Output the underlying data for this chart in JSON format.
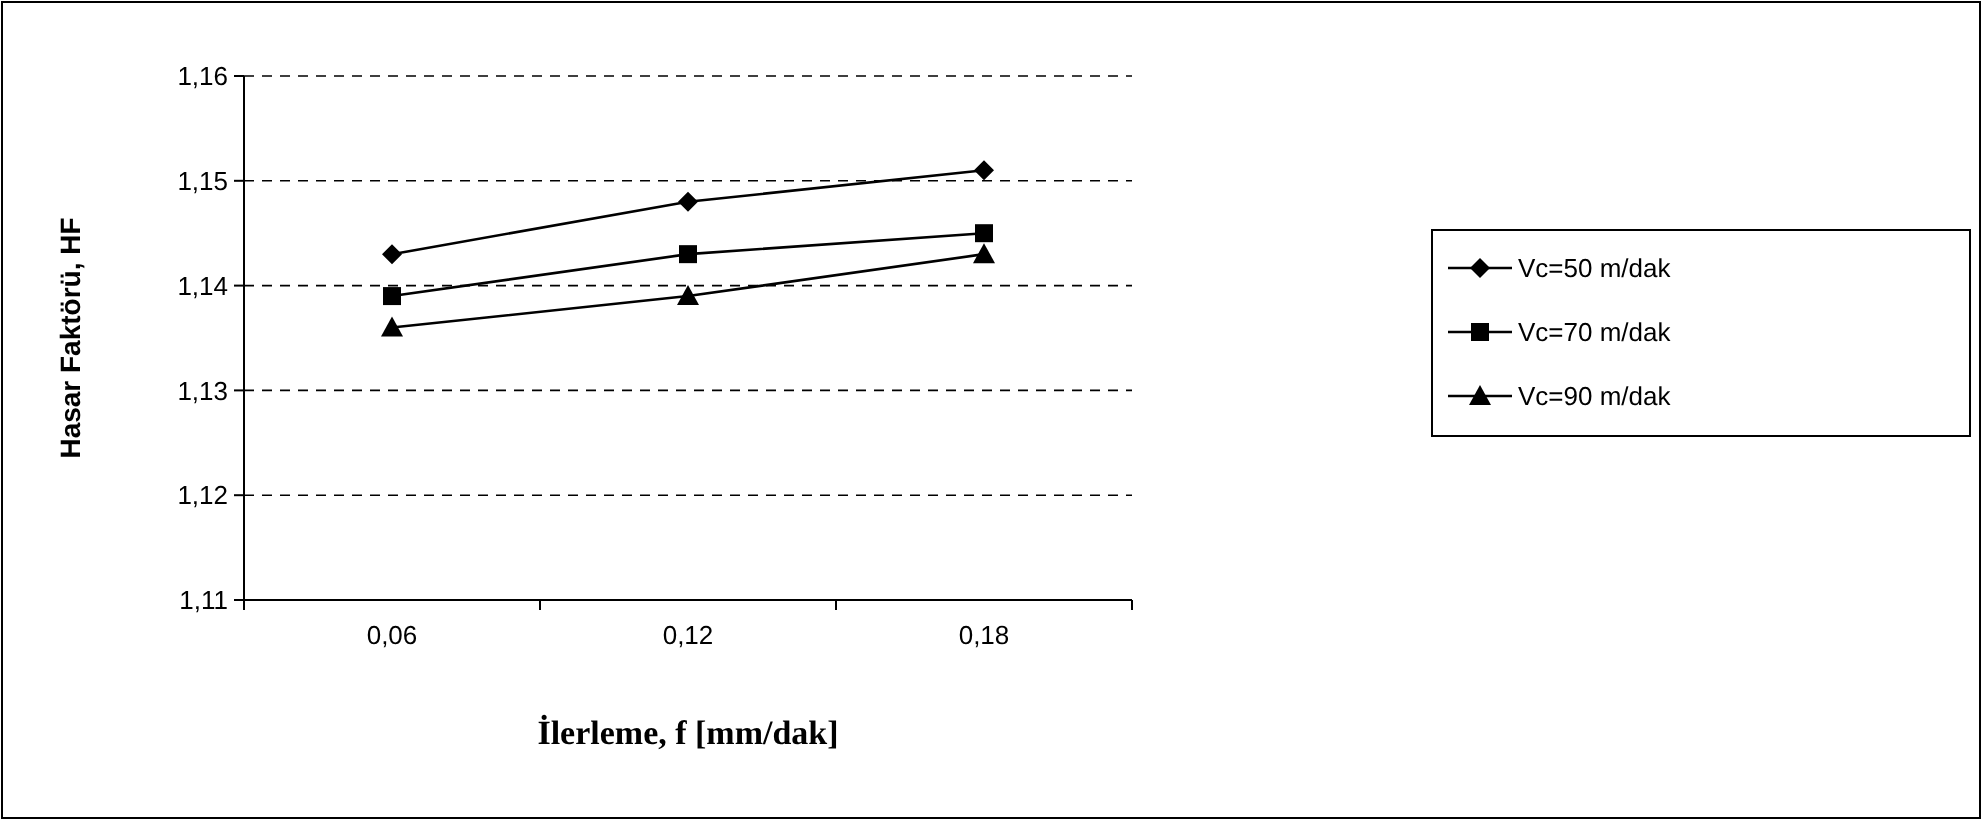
{
  "chart_data": {
    "type": "line",
    "xlabel": "İlerleme, f [mm/dak]",
    "ylabel": "Hasar Faktörü, HF",
    "categories": [
      "0,06",
      "0,12",
      "0,18"
    ],
    "series": [
      {
        "name": "Vc=50 m/dak",
        "color": "#000000",
        "marker": "diamond",
        "values": [
          1.143,
          1.148,
          1.151
        ]
      },
      {
        "name": "Vc=70 m/dak",
        "color": "#000000",
        "marker": "square",
        "values": [
          1.139,
          1.143,
          1.145
        ]
      },
      {
        "name": "Vc=90 m/dak",
        "color": "#000000",
        "marker": "triangle",
        "values": [
          1.136,
          1.139,
          1.143
        ]
      }
    ],
    "ylim": [
      1.11,
      1.16
    ],
    "yticks": [
      {
        "value": 1.11,
        "label": "1,11"
      },
      {
        "value": 1.12,
        "label": "1,12"
      },
      {
        "value": 1.13,
        "label": "1,13"
      },
      {
        "value": 1.14,
        "label": "1,14"
      },
      {
        "value": 1.15,
        "label": "1,15"
      },
      {
        "value": 1.16,
        "label": "1,16"
      }
    ],
    "grid": "y",
    "legend": "right",
    "line_style": "solid"
  }
}
